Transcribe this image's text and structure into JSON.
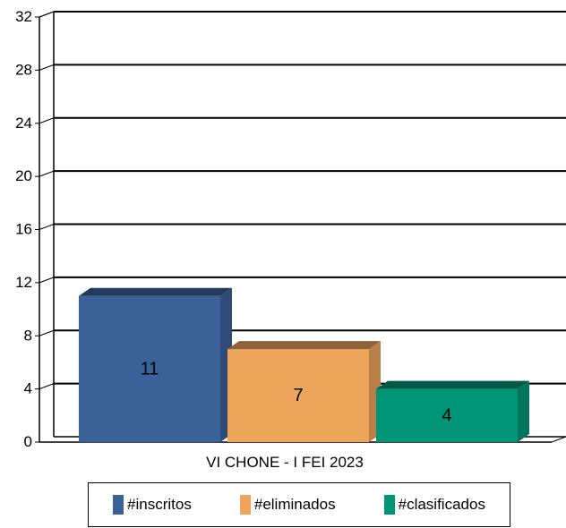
{
  "chart_data": {
    "type": "bar",
    "title": "",
    "categories": [
      "VI CHONE - I FEI 2023"
    ],
    "series": [
      {
        "name": "#inscritos",
        "values": [
          11
        ],
        "color": "#3b6298"
      },
      {
        "name": "#eliminados",
        "values": [
          7
        ],
        "color": "#eda45b"
      },
      {
        "name": "#clasificados",
        "values": [
          4
        ],
        "color": "#009577"
      }
    ],
    "ylim": [
      0,
      32
    ],
    "yticks": [
      "0",
      "4",
      "8",
      "12",
      "16",
      "20",
      "24",
      "28",
      "32"
    ],
    "grid": true,
    "legend_position": "bottom",
    "style": "3d-bar"
  }
}
